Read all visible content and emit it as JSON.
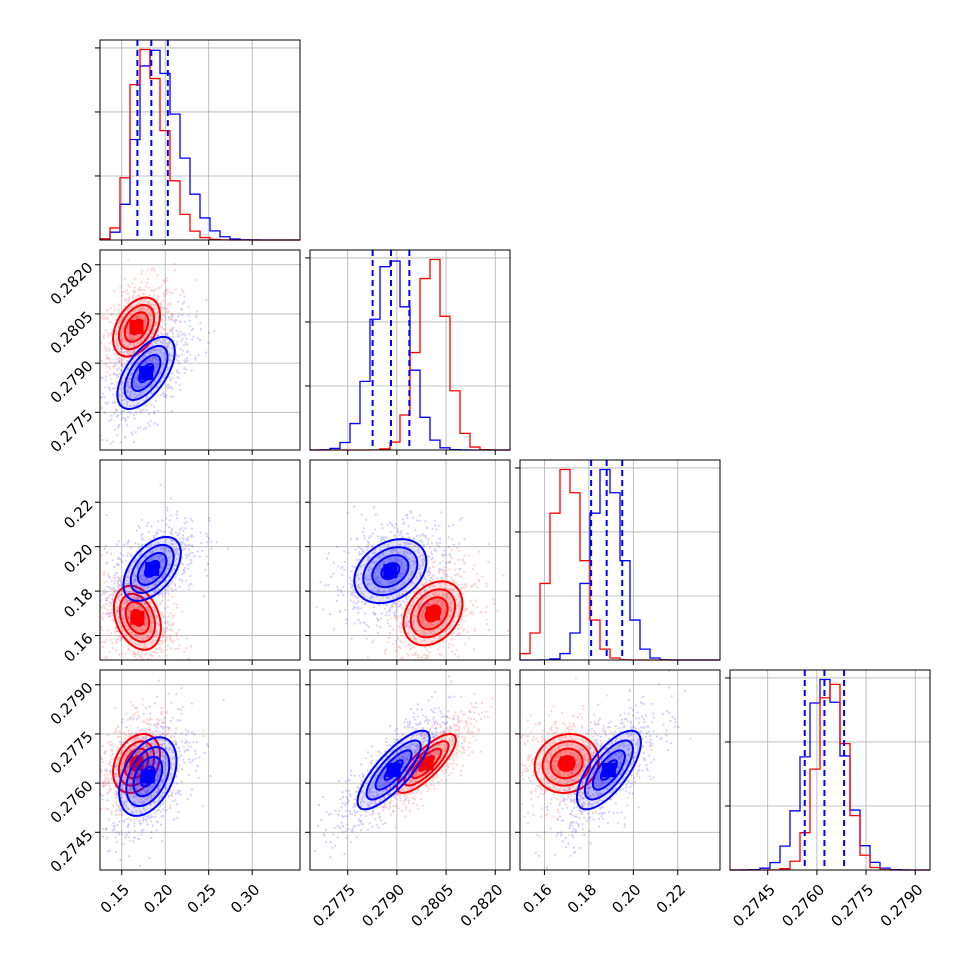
{
  "chart_data": {
    "type": "scatter",
    "title": "",
    "subtitle": "",
    "layout": "corner-plot",
    "grid": true,
    "legend": "none",
    "series_colors": [
      "#0000ff",
      "#ff0000"
    ],
    "parameters": [
      {
        "range": [
          0.125,
          0.355
        ],
        "ticks": [
          0.15,
          0.2,
          0.25,
          0.3
        ],
        "tick_labels": [
          "0.15",
          "0.20",
          "0.25",
          "0.30"
        ]
      },
      {
        "range": [
          0.27635,
          0.28245
        ],
        "ticks": [
          0.2775,
          0.279,
          0.2805,
          0.282
        ],
        "tick_labels": [
          "0.2775",
          "0.2790",
          "0.2805",
          "0.2820"
        ]
      },
      {
        "range": [
          0.149,
          0.239
        ],
        "ticks": [
          0.16,
          0.18,
          0.2,
          0.22
        ],
        "tick_labels": [
          "0.16",
          "0.18",
          "0.20",
          "0.22"
        ]
      },
      {
        "range": [
          0.27335,
          0.27945
        ],
        "ticks": [
          0.2745,
          0.276,
          0.2775,
          0.279
        ],
        "tick_labels": [
          "0.2745",
          "0.2760",
          "0.2775",
          "0.2790"
        ]
      }
    ],
    "marginals": [
      {
        "blue": {
          "mean": 0.184,
          "sd": 0.0165
        },
        "red": {
          "mean": 0.174,
          "sd": 0.0135
        },
        "quantiles_blue": [
          0.168,
          0.184,
          0.203
        ]
      },
      {
        "blue": {
          "mean": 0.27882,
          "sd": 0.00055
        },
        "red": {
          "mean": 0.28008,
          "sd": 0.00045
        },
        "quantiles_blue": [
          0.27826,
          0.27882,
          0.27938
        ]
      },
      {
        "blue": {
          "mean": 0.188,
          "sd": 0.0072
        },
        "red": {
          "mean": 0.17,
          "sd": 0.0072
        },
        "quantiles_blue": [
          0.181,
          0.188,
          0.195
        ]
      },
      {
        "blue": {
          "mean": 0.27625,
          "sd": 0.0006
        },
        "red": {
          "mean": 0.27645,
          "sd": 0.00045
        },
        "quantiles_blue": [
          0.27563,
          0.27623,
          0.27683
        ]
      }
    ],
    "joint_peaks": [
      {
        "i": 1,
        "j": 0,
        "blue": [
          0.178,
          0.2787,
          0.6
        ],
        "red": [
          0.167,
          0.2801,
          0.4
        ]
      },
      {
        "i": 2,
        "j": 0,
        "blue": [
          0.185,
          0.19,
          0.5
        ],
        "red": [
          0.168,
          0.168,
          -0.3
        ]
      },
      {
        "i": 2,
        "j": 1,
        "blue": [
          0.2788,
          0.189,
          0.3
        ],
        "red": [
          0.2801,
          0.17,
          0.3
        ]
      },
      {
        "i": 3,
        "j": 0,
        "blue": [
          0.18,
          0.2762,
          0.4
        ],
        "red": [
          0.167,
          0.2766,
          0.3
        ]
      },
      {
        "i": 3,
        "j": 1,
        "blue": [
          0.2789,
          0.2764,
          0.8
        ],
        "red": [
          0.2799,
          0.2766,
          0.8
        ]
      },
      {
        "i": 3,
        "j": 2,
        "blue": [
          0.189,
          0.2764,
          0.7
        ],
        "red": [
          0.17,
          0.2766,
          0.1
        ]
      }
    ]
  }
}
